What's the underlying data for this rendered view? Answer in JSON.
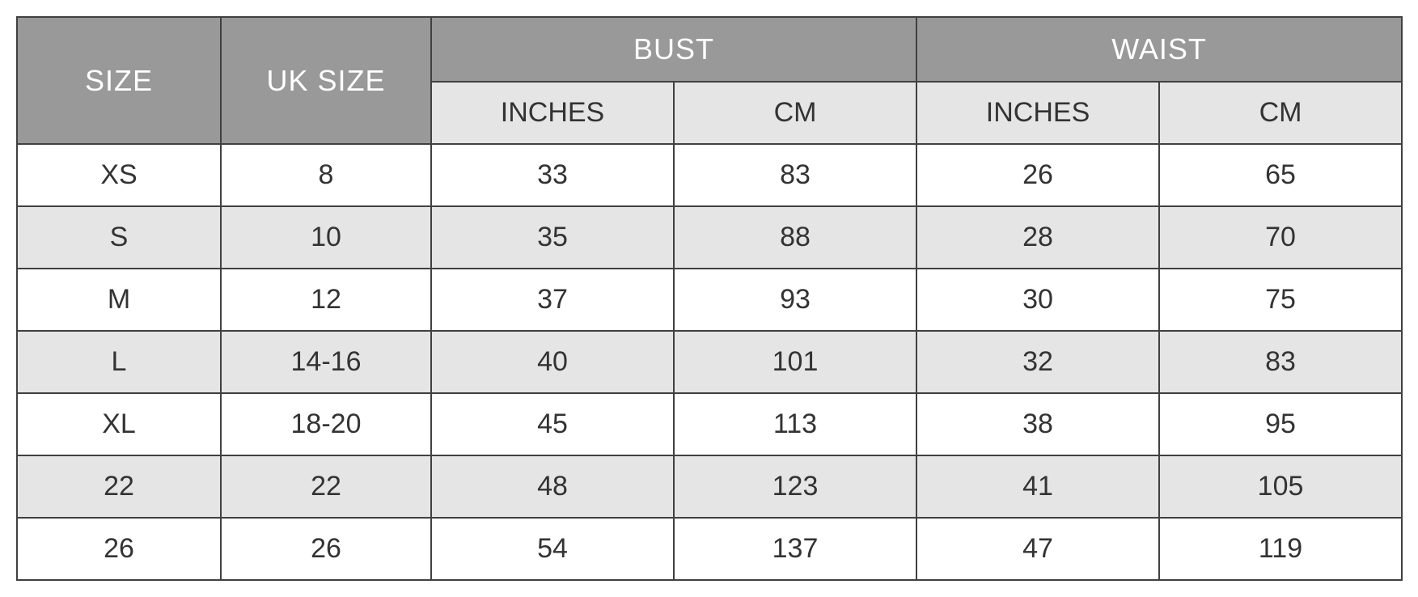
{
  "table": {
    "headers": {
      "size": "SIZE",
      "uk_size": "UK SIZE",
      "bust": "BUST",
      "waist": "WAIST"
    },
    "subheaders": {
      "inches": "INCHES",
      "cm": "CM"
    },
    "rows": [
      {
        "size": "XS",
        "uk": "8",
        "bust_in": "33",
        "bust_cm": "83",
        "waist_in": "26",
        "waist_cm": "65",
        "bg": "white"
      },
      {
        "size": "S",
        "uk": "10",
        "bust_in": "35",
        "bust_cm": "88",
        "waist_in": "28",
        "waist_cm": "70",
        "bg": "gray"
      },
      {
        "size": "M",
        "uk": "12",
        "bust_in": "37",
        "bust_cm": "93",
        "waist_in": "30",
        "waist_cm": "75",
        "bg": "white"
      },
      {
        "size": "L",
        "uk": "14-16",
        "bust_in": "40",
        "bust_cm": "101",
        "waist_in": "32",
        "waist_cm": "83",
        "bg": "gray"
      },
      {
        "size": "XL",
        "uk": "18-20",
        "bust_in": "45",
        "bust_cm": "113",
        "waist_in": "38",
        "waist_cm": "95",
        "bg": "white"
      },
      {
        "size": "22",
        "uk": "22",
        "bust_in": "48",
        "bust_cm": "123",
        "waist_in": "41",
        "waist_cm": "105",
        "bg": "gray"
      },
      {
        "size": "26",
        "uk": "26",
        "bust_in": "54",
        "bust_cm": "137",
        "waist_in": "47",
        "waist_cm": "119",
        "bg": "white"
      }
    ],
    "colors": {
      "header_bg": "#999999",
      "header_text": "#ffffff",
      "subheader_bg": "#e5e5e5",
      "row_white": "#ffffff",
      "row_gray": "#e5e5e5",
      "border": "#404040",
      "text": "#333333"
    },
    "font_sizes": {
      "header": 36,
      "cell": 34
    }
  }
}
